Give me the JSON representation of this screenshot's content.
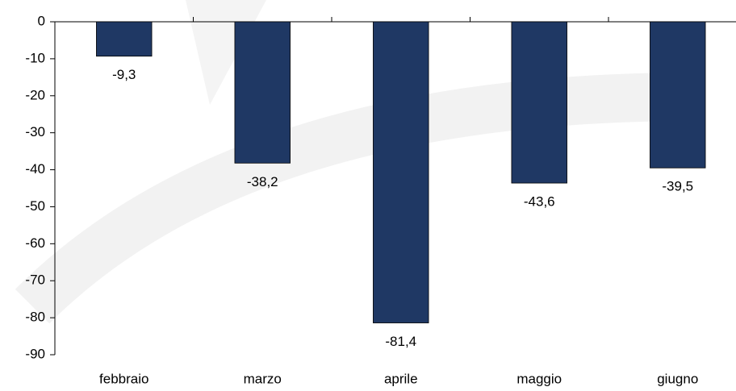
{
  "chart_data": {
    "type": "bar",
    "categories": [
      "febbraio",
      "marzo",
      "aprile",
      "maggio",
      "giugno"
    ],
    "values": [
      -9.3,
      -38.2,
      -81.4,
      -43.6,
      -39.5
    ],
    "value_labels": [
      "-9,3",
      "-38,2",
      "-81,4",
      "-43,6",
      "-39,5"
    ],
    "color": "#1f3864",
    "ylim": [
      -90,
      0
    ],
    "yticks": [
      0,
      -10,
      -20,
      -30,
      -40,
      -50,
      -60,
      -70,
      -80,
      -90
    ],
    "grid": false
  }
}
